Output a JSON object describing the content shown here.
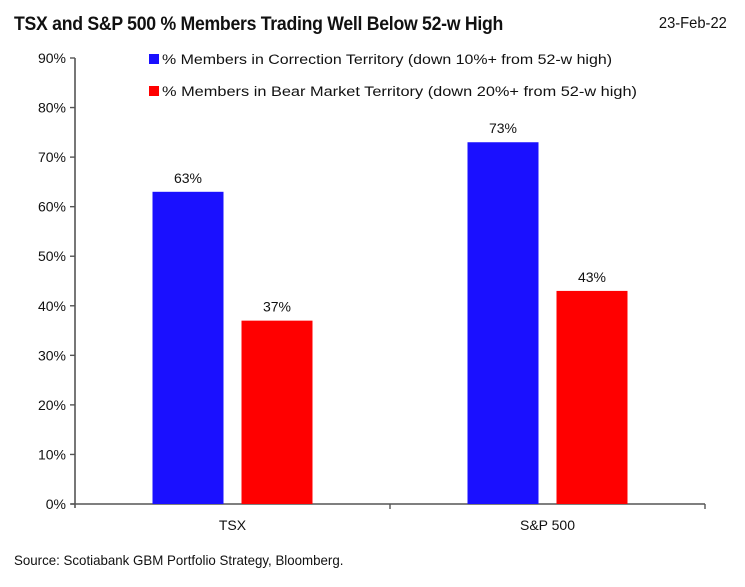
{
  "chart_data": {
    "type": "bar",
    "title": "TSX and S&P 500 % Members Trading Well Below 52-w High",
    "date": "23-Feb-22",
    "categories": [
      "TSX",
      "S&P 500"
    ],
    "series": [
      {
        "name": "% Members in Correction Territory (down 10%+ from 52-w high)",
        "color": "#1a10ff",
        "values": [
          63,
          73
        ],
        "labels": [
          "63%",
          "73%"
        ]
      },
      {
        "name": "% Members in Bear Market Territory (down 20%+ from 52-w high)",
        "color": "#ff0000",
        "values": [
          37,
          43
        ],
        "labels": [
          "37%",
          "43%"
        ]
      }
    ],
    "xlabel": "",
    "ylabel": "",
    "ylim": [
      0,
      90
    ],
    "yticks": [
      0,
      10,
      20,
      30,
      40,
      50,
      60,
      70,
      80,
      90
    ],
    "ytick_labels": [
      "0%",
      "10%",
      "20%",
      "30%",
      "40%",
      "50%",
      "60%",
      "70%",
      "80%",
      "90%"
    ],
    "grid": false,
    "legend_position": "top-center",
    "source": "Source: Scotiabank GBM Portfolio Strategy, Bloomberg."
  }
}
